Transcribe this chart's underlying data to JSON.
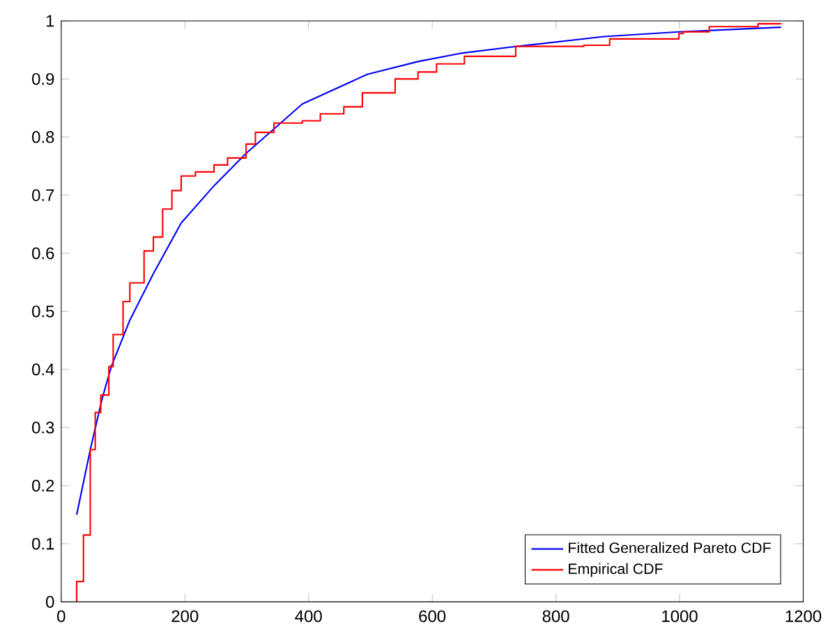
{
  "chart_data": {
    "type": "line",
    "xlim": [
      0,
      1200
    ],
    "ylim": [
      0,
      1
    ],
    "xticks": [
      0,
      200,
      400,
      600,
      800,
      1000,
      1200
    ],
    "yticks": [
      0,
      0.1,
      0.2,
      0.3,
      0.4,
      0.5,
      0.6,
      0.7,
      0.8,
      0.9,
      1
    ],
    "grid": false,
    "legend": "bottom right",
    "marker": "none",
    "series": [
      {
        "name": "Fitted Generalized Pareto CDF",
        "color": "#0000ff",
        "x": [
          25,
          47,
          66,
          81,
          111,
          149,
          194,
          247,
          299,
          390,
          495,
          577,
          645,
          728,
          878,
          999,
          1164
        ],
        "values": [
          0.15,
          0.262,
          0.349,
          0.405,
          0.485,
          0.565,
          0.652,
          0.716,
          0.772,
          0.857,
          0.908,
          0.93,
          0.944,
          0.955,
          0.973,
          0.981,
          0.989
        ]
      },
      {
        "name": "Empirical CDF",
        "type": "step",
        "color": "#ff0000",
        "x": [
          25,
          25,
          36,
          47,
          55,
          64,
          77,
          84,
          100,
          111,
          134,
          149,
          164,
          179,
          194,
          217,
          247,
          269,
          299,
          314,
          344,
          390,
          419,
          457,
          487,
          540,
          577,
          607,
          652,
          735,
          845,
          887,
          999,
          1006,
          1048,
          1127,
          1164
        ],
        "values": [
          0,
          0.035,
          0.115,
          0.262,
          0.326,
          0.356,
          0.405,
          0.46,
          0.517,
          0.549,
          0.604,
          0.628,
          0.676,
          0.708,
          0.733,
          0.74,
          0.752,
          0.764,
          0.788,
          0.808,
          0.824,
          0.828,
          0.84,
          0.852,
          0.876,
          0.9,
          0.912,
          0.926,
          0.939,
          0.956,
          0.958,
          0.969,
          0.978,
          0.981,
          0.99,
          0.995,
          0.996
        ]
      }
    ]
  }
}
